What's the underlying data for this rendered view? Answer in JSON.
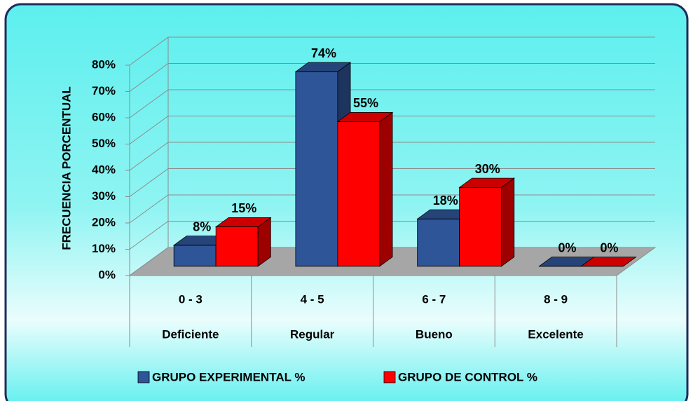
{
  "chart_data": {
    "type": "bar3d",
    "y_axis_label": "FRECUENCIA PORCENTUAL",
    "categories": [
      "0 - 3",
      "4 - 5",
      "6 - 7",
      "8 - 9"
    ],
    "category_labels": [
      "Deficiente",
      "Regular",
      "Bueno",
      "Excelente"
    ],
    "series": [
      {
        "name": "GRUPO EXPERIMENTAL %",
        "color": "#2e5597",
        "values": [
          8,
          74,
          18,
          0
        ],
        "value_labels": [
          "8%",
          "74%",
          "18%",
          "0%"
        ]
      },
      {
        "name": "GRUPO DE CONTROL %",
        "color": "#ff0000",
        "values": [
          15,
          55,
          30,
          0
        ],
        "value_labels": [
          "15%",
          "55%",
          "30%",
          "0%"
        ]
      }
    ],
    "ylim": [
      0,
      80
    ],
    "yticks": [
      {
        "value": 0,
        "label": "0%"
      },
      {
        "value": 10,
        "label": "10%"
      },
      {
        "value": 20,
        "label": "20%"
      },
      {
        "value": 30,
        "label": "30%"
      },
      {
        "value": 40,
        "label": "40%"
      },
      {
        "value": 50,
        "label": "50%"
      },
      {
        "value": 60,
        "label": "60%"
      },
      {
        "value": 70,
        "label": "70%"
      },
      {
        "value": 80,
        "label": "80%"
      }
    ],
    "grid": true,
    "legend": "bottom"
  }
}
